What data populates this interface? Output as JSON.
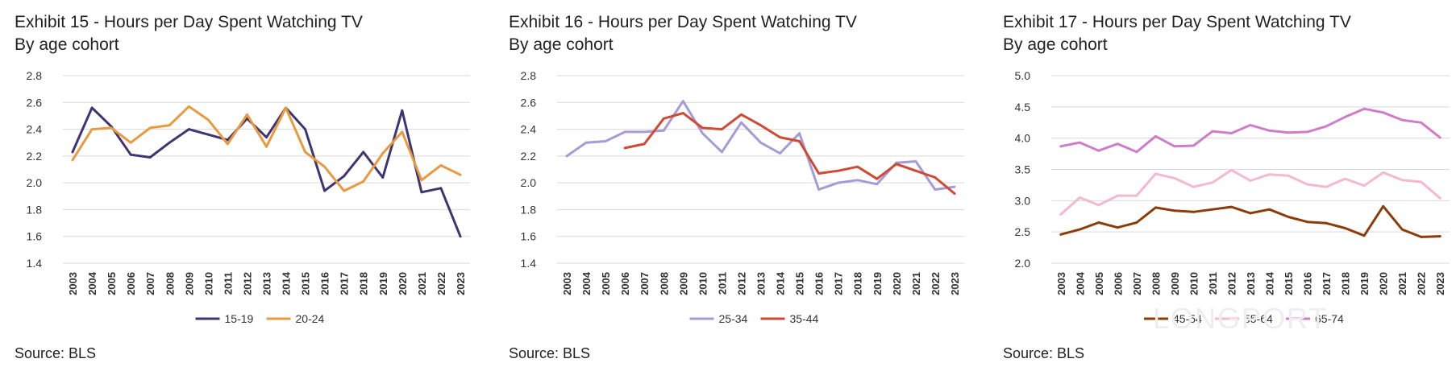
{
  "watermark": "LONGPORT",
  "chart_data": [
    {
      "type": "line",
      "title": "Exhibit 15 - Hours per Day Spent Watching TV",
      "subtitle": "By age cohort",
      "source": "Source: BLS",
      "categories": [
        "2003",
        "2004",
        "2005",
        "2006",
        "2007",
        "2008",
        "2009",
        "2010",
        "2011",
        "2012",
        "2013",
        "2014",
        "2015",
        "2016",
        "2017",
        "2018",
        "2019",
        "2020",
        "2021",
        "2022",
        "2023"
      ],
      "ylim": [
        1.4,
        2.8
      ],
      "yticks": [
        "2.8",
        "2.6",
        "2.4",
        "2.2",
        "2.0",
        "1.8",
        "1.6",
        "1.4"
      ],
      "grid": true,
      "legend_position": "bottom",
      "series": [
        {
          "name": "15-19",
          "color": "#3f3573",
          "values": [
            2.23,
            2.56,
            2.42,
            2.21,
            2.19,
            2.3,
            2.4,
            2.36,
            2.32,
            2.48,
            2.34,
            2.56,
            2.4,
            1.94,
            2.05,
            2.23,
            2.04,
            2.54,
            1.93,
            1.96,
            1.6
          ]
        },
        {
          "name": "20-24",
          "color": "#ea9a3e",
          "values": [
            2.17,
            2.4,
            2.41,
            2.3,
            2.41,
            2.43,
            2.57,
            2.47,
            2.29,
            2.51,
            2.27,
            2.56,
            2.23,
            2.12,
            1.94,
            2.01,
            2.22,
            2.38,
            2.02,
            2.13,
            2.06
          ]
        }
      ]
    },
    {
      "type": "line",
      "title": "Exhibit 16 - Hours per Day Spent Watching TV",
      "subtitle": "By age cohort",
      "source": "Source: BLS",
      "categories": [
        "2003",
        "2004",
        "2005",
        "2006",
        "2007",
        "2008",
        "2009",
        "2010",
        "2011",
        "2012",
        "2013",
        "2014",
        "2015",
        "2016",
        "2017",
        "2018",
        "2019",
        "2020",
        "2021",
        "2022",
        "2023"
      ],
      "ylim": [
        1.4,
        2.8
      ],
      "yticks": [
        "2.8",
        "2.6",
        "2.4",
        "2.2",
        "2.0",
        "1.8",
        "1.6",
        "1.4"
      ],
      "grid": true,
      "legend_position": "bottom",
      "series": [
        {
          "name": "25-34",
          "color": "#a79ad8",
          "values": [
            2.2,
            2.3,
            2.31,
            2.38,
            2.38,
            2.39,
            2.61,
            2.37,
            2.23,
            2.45,
            2.3,
            2.22,
            2.37,
            1.95,
            2.0,
            2.02,
            1.99,
            2.15,
            2.16,
            1.95,
            1.97
          ]
        },
        {
          "name": "35-44",
          "color": "#cf4a33",
          "values": [
            null,
            null,
            null,
            2.26,
            2.29,
            2.48,
            2.52,
            2.41,
            2.4,
            2.51,
            2.43,
            2.34,
            2.31,
            2.07,
            2.09,
            2.12,
            2.03,
            2.14,
            2.09,
            2.04,
            1.92
          ]
        }
      ]
    },
    {
      "type": "line",
      "title": "Exhibit 17 - Hours per Day Spent Watching TV",
      "subtitle": "By age cohort",
      "source": "Source: BLS",
      "categories": [
        "2003",
        "2004",
        "2005",
        "2006",
        "2007",
        "2008",
        "2009",
        "2010",
        "2011",
        "2012",
        "2013",
        "2014",
        "2015",
        "2016",
        "2017",
        "2018",
        "2019",
        "2020",
        "2021",
        "2022",
        "2023"
      ],
      "ylim": [
        2.0,
        5.0
      ],
      "yticks": [
        "5.0",
        "4.5",
        "4.0",
        "3.5",
        "3.0",
        "2.5",
        "2.0"
      ],
      "grid": true,
      "legend_position": "bottom",
      "series": [
        {
          "name": "45-54",
          "color": "#8a3c0a",
          "values": [
            2.46,
            2.54,
            2.65,
            2.57,
            2.65,
            2.89,
            2.84,
            2.82,
            2.86,
            2.9,
            2.8,
            2.86,
            2.74,
            2.66,
            2.64,
            2.56,
            2.44,
            2.91,
            2.54,
            2.42,
            2.43
          ]
        },
        {
          "name": "55-64",
          "color": "#f4b8cf",
          "values": [
            2.78,
            3.05,
            2.93,
            3.08,
            3.08,
            3.43,
            3.36,
            3.22,
            3.29,
            3.49,
            3.32,
            3.42,
            3.4,
            3.26,
            3.22,
            3.35,
            3.24,
            3.45,
            3.33,
            3.3,
            3.04
          ]
        },
        {
          "name": "65-74",
          "color": "#cf7cc9",
          "values": [
            3.87,
            3.93,
            3.8,
            3.91,
            3.78,
            4.03,
            3.87,
            3.88,
            4.11,
            4.08,
            4.21,
            4.12,
            4.09,
            4.1,
            4.19,
            4.34,
            4.47,
            4.41,
            4.29,
            4.25,
            4.01
          ]
        }
      ]
    }
  ]
}
